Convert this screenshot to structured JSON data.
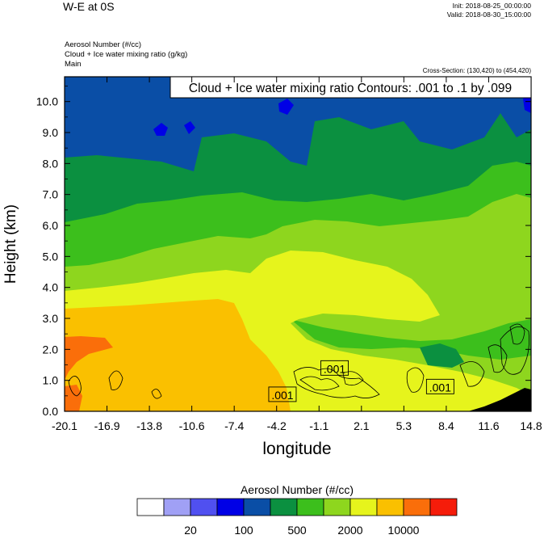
{
  "header": {
    "title": "W-E at 0S",
    "init": "Init: 2018-08-25_00:00:00",
    "valid": "Valid: 2018-08-30_15:00:00",
    "field_lines": [
      "Aerosol Number   (#/cc)",
      "Cloud + Ice water mixing ratio   (g/kg)",
      "Main"
    ],
    "cross_section": "Cross-Section: (130,420) to (454,420)"
  },
  "chart_data": {
    "type": "heatmap",
    "xlabel": "longitude",
    "ylabel": "Height (km)",
    "xlim": [
      -20.1,
      14.8
    ],
    "ylim": [
      0,
      10.8
    ],
    "x_ticks": [
      "-20.1",
      "-16.9",
      "-13.8",
      "-10.6",
      "-7.4",
      "-4.2",
      "-1.1",
      "2.1",
      "5.3",
      "8.4",
      "11.6",
      "14.8"
    ],
    "y_ticks": [
      "0.0",
      "1.0",
      "2.0",
      "3.0",
      "4.0",
      "5.0",
      "6.0",
      "7.0",
      "8.0",
      "9.0",
      "10.0"
    ],
    "contour_info": "Cloud + Ice water mixing ratio Contours: .001 to .1 by .099",
    "contour_labels": [
      {
        "text": ".001",
        "x": -3.8,
        "y": 0.55
      },
      {
        "text": ".001",
        "x": 0.1,
        "y": 1.4
      },
      {
        "text": ".001",
        "x": 8.0,
        "y": 0.8
      }
    ],
    "colorbar": {
      "title": "Aerosol Number  (#/cc)",
      "colors": [
        "#ffffff",
        "#a0a0f5",
        "#5050f0",
        "#0000e6",
        "#0a4ea6",
        "#0b9040",
        "#3cbf1c",
        "#8ed61e",
        "#e6f41c",
        "#fac000",
        "#fa6e0a",
        "#f51c0a"
      ],
      "labels": [
        "20",
        "100",
        "500",
        "2000",
        "10000"
      ]
    },
    "terrain_color": "#000000"
  }
}
